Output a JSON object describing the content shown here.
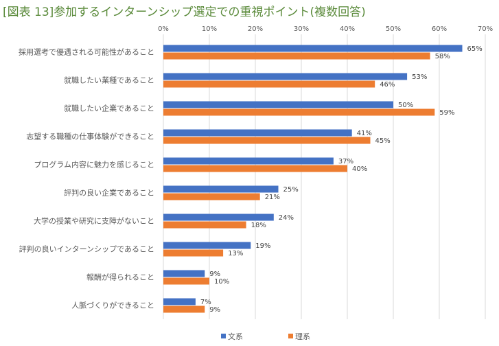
{
  "title": "[図表 13]参加するインターンシップ選定での重視ポイント(複数回答)",
  "chart_data": {
    "type": "bar",
    "orientation": "horizontal",
    "title": "[図表 13]参加するインターンシップ選定での重視ポイント(複数回答)",
    "categories": [
      "採用選考で優遇される可能性があること",
      "就職したい業種であること",
      "就職したい企業であること",
      "志望する職種の仕事体験ができること",
      "プログラム内容に魅力を感じること",
      "評判の良い企業であること",
      "大学の授業や研究に支障がないこと",
      "評判の良いインターンシップであること",
      "報酬が得られること",
      "人脈づくりができること"
    ],
    "series": [
      {
        "name": "文系",
        "color": "#4472c4",
        "values": [
          65,
          53,
          50,
          41,
          37,
          25,
          24,
          19,
          9,
          7
        ]
      },
      {
        "name": "理系",
        "color": "#ed7d31",
        "values": [
          58,
          46,
          59,
          45,
          40,
          21,
          18,
          13,
          10,
          9
        ]
      }
    ],
    "xlim": [
      0,
      70
    ],
    "xticks": [
      "0%",
      "10%",
      "20%",
      "30%",
      "40%",
      "50%",
      "60%",
      "70%"
    ],
    "grid": true,
    "legend": "bottom"
  }
}
